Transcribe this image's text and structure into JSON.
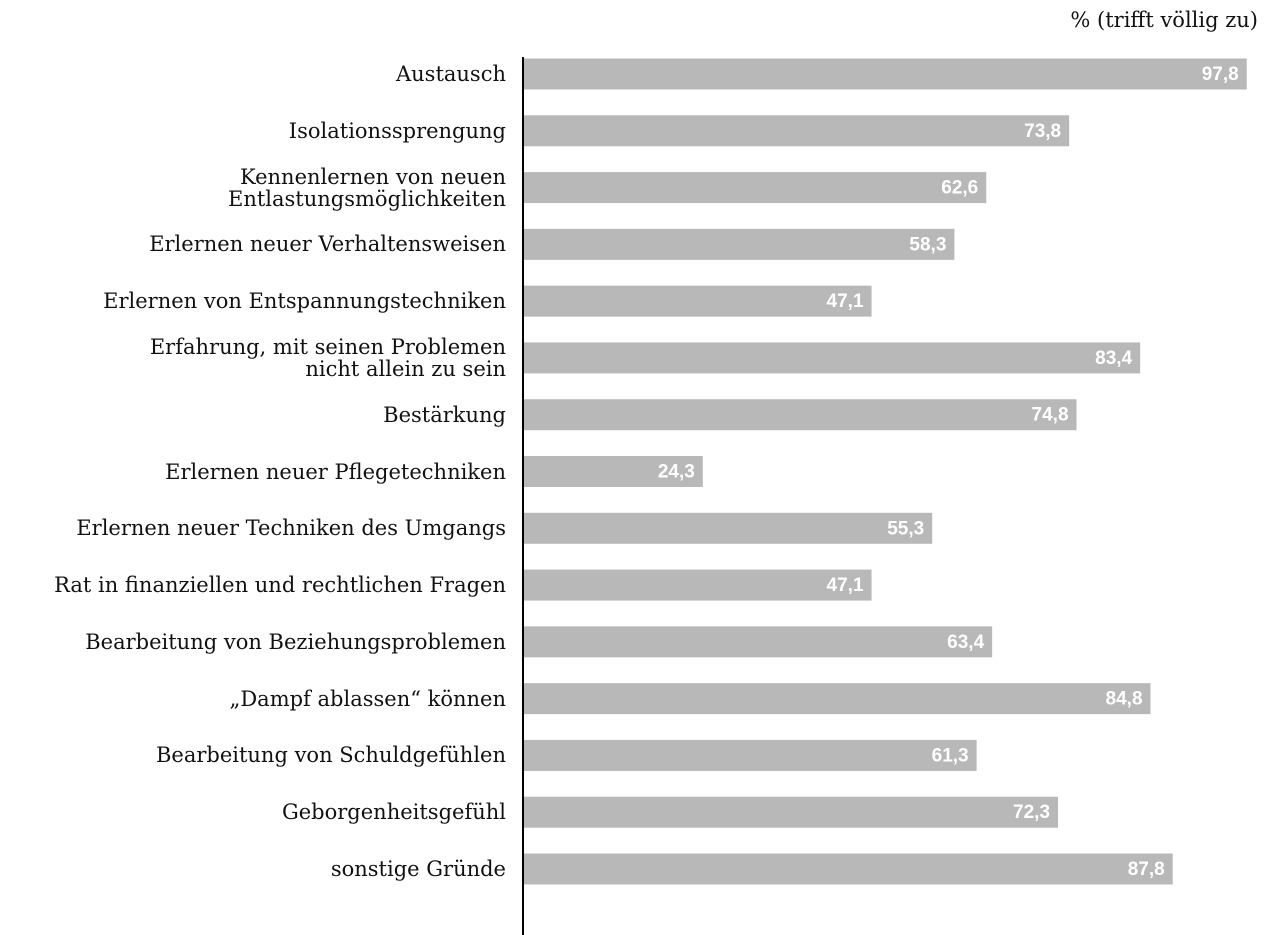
{
  "chart_data": {
    "type": "barh",
    "unit_label": "% (trifft völlig zu)",
    "categories": [
      "Austausch",
      "Isolationssprengung",
      "Kennenlernen von neuen\nEntlastungsmöglichkeiten",
      "Erlernen neuer Verhaltensweisen",
      "Erlernen von Entspannungstechniken",
      "Erfahrung, mit seinen Problemen\nnicht allein zu sein",
      "Bestärkung",
      "Erlernen neuer Pflegetechniken",
      "Erlernen neuer Techniken des Umgangs",
      "Rat in finanziellen und rechtlichen Fragen",
      "Bearbeitung von Beziehungsproblemen",
      "„Dampf ablassen“ können",
      "Bearbeitung von Schuldgefühlen",
      "Geborgenheitsgefühl",
      "sonstige Gründe"
    ],
    "values": [
      97.8,
      73.8,
      62.6,
      58.3,
      47.1,
      83.4,
      74.8,
      24.3,
      55.3,
      47.1,
      63.4,
      84.8,
      61.3,
      72.3,
      87.8
    ],
    "value_labels": [
      "97,8",
      "73,8",
      "62,6",
      "58,3",
      "47,1",
      "83,4",
      "74,8",
      "24,3",
      "55,3",
      "47,1",
      "63,4",
      "84,8",
      "61,3",
      "72,3",
      "87,8"
    ],
    "color": "#b8b8b8",
    "xlim": [
      0,
      100
    ]
  }
}
